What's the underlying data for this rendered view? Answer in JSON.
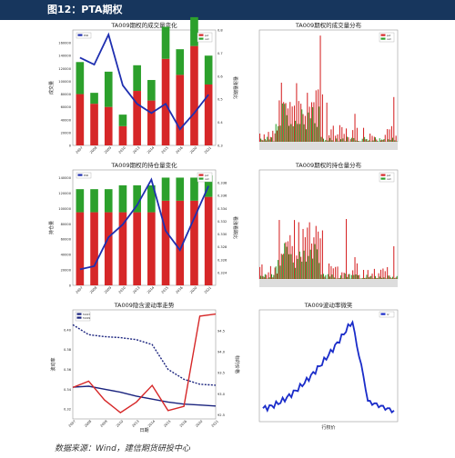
{
  "header": {
    "title": "图12：PTA期权"
  },
  "source": "数据来源：Wind，建信期货研投中心",
  "colors": {
    "put": "#d62728",
    "call": "#2ca02c",
    "line": "#1f2fb0",
    "header": "#17365d"
  },
  "chart_data": [
    {
      "type": "bar",
      "title": "TA009期权的成交量变化",
      "ylabel": "成交量",
      "y2label": "看涨看跌比",
      "categories": [
        "2007",
        "2008",
        "2009",
        "2010",
        "2013",
        "2014",
        "2015",
        "2016",
        "2020",
        "2021"
      ],
      "ylim": [
        0,
        180000
      ],
      "y2lim": [
        0.3,
        0.8
      ],
      "yticks": [
        "0",
        "20000",
        "40000",
        "60000",
        "80000",
        "100000",
        "120000",
        "140000",
        "160000"
      ],
      "y2ticks": [
        "0.3",
        "0.4",
        "0.5",
        "0.6",
        "0.7",
        "0.8"
      ],
      "series": [
        {
          "name": "put",
          "values": [
            80000,
            65000,
            60000,
            30000,
            85000,
            70000,
            135000,
            110000,
            155000,
            95000
          ]
        },
        {
          "name": "call",
          "values": [
            50000,
            17000,
            55000,
            18000,
            40000,
            32000,
            50000,
            40000,
            45000,
            45000
          ]
        }
      ],
      "line": {
        "name": "PCR",
        "values": [
          0.68,
          0.65,
          0.78,
          0.56,
          0.48,
          0.44,
          0.48,
          0.37,
          0.44,
          0.52
        ]
      }
    },
    {
      "type": "bar",
      "title": "TA009期权的成交量分布",
      "series": [
        {
          "name": "put"
        },
        {
          "name": "call"
        }
      ]
    },
    {
      "type": "bar",
      "title": "TA009期权的持仓量变化",
      "ylabel": "持仓量",
      "y2label": "看涨看跌比",
      "categories": [
        "2007",
        "2008",
        "2009",
        "2010",
        "2013",
        "2014",
        "2015",
        "2016",
        "2020",
        "2021"
      ],
      "ylim": [
        0,
        150000
      ],
      "y2lim": [
        0.322,
        0.34
      ],
      "yticks": [
        "0",
        "20000",
        "40000",
        "60000",
        "80000",
        "100000",
        "120000",
        "140000"
      ],
      "y2ticks": [
        "0.324",
        "0.326",
        "0.328",
        "0.330",
        "0.332",
        "0.334",
        "0.336",
        "0.338"
      ],
      "series": [
        {
          "name": "put",
          "values": [
            95000,
            95000,
            95000,
            95000,
            95000,
            95000,
            110000,
            110000,
            110000,
            115000
          ]
        },
        {
          "name": "call",
          "values": [
            30000,
            30000,
            30000,
            35000,
            35000,
            35000,
            30000,
            30000,
            30000,
            28000
          ]
        }
      ],
      "line": {
        "name": "PCR",
        "values": [
          0.3245,
          0.325,
          0.3295,
          0.3315,
          0.3345,
          0.3385,
          0.3305,
          0.3275,
          0.3325,
          0.3375
        ]
      }
    },
    {
      "type": "bar",
      "title": "TA009期权的持仓量分布",
      "series": [
        {
          "name": "put"
        },
        {
          "name": "call"
        }
      ]
    },
    {
      "type": "line",
      "title": "TA009隐含波动率走势",
      "xlabel": "日期",
      "ylabel": "波动率",
      "y2label": "标的价格",
      "categories": [
        "2007",
        "2008",
        "2009",
        "2010",
        "2013",
        "2014",
        "2015",
        "2016",
        "2020",
        "2021"
      ],
      "ylim": [
        0.31,
        0.42
      ],
      "y2lim": [
        92.4,
        95.0
      ],
      "yticks": [
        "0.32",
        "0.34",
        "0.36",
        "0.38",
        "0.40"
      ],
      "y2ticks": [
        "92.5",
        "93.0",
        "93.5",
        "94.0",
        "94.5"
      ],
      "series": [
        {
          "name": "TA007",
          "values": [
            0.405,
            0.395,
            0.393,
            0.392,
            0.39,
            0.385,
            0.36,
            0.35,
            0.345,
            0.344
          ]
        },
        {
          "name": "TA009",
          "values": [
            0.342,
            0.343,
            0.34,
            0.337,
            0.333,
            0.33,
            0.327,
            0.325,
            0.324,
            0.323
          ]
        },
        {
          "name": "price",
          "values": [
            93.15,
            93.3,
            92.85,
            92.55,
            92.8,
            93.2,
            92.6,
            92.7,
            94.85,
            94.9
          ]
        }
      ]
    },
    {
      "type": "line",
      "title": "TA009波动率微笑",
      "xlabel": "行权价",
      "series": [
        {
          "name": "IV"
        }
      ]
    }
  ]
}
